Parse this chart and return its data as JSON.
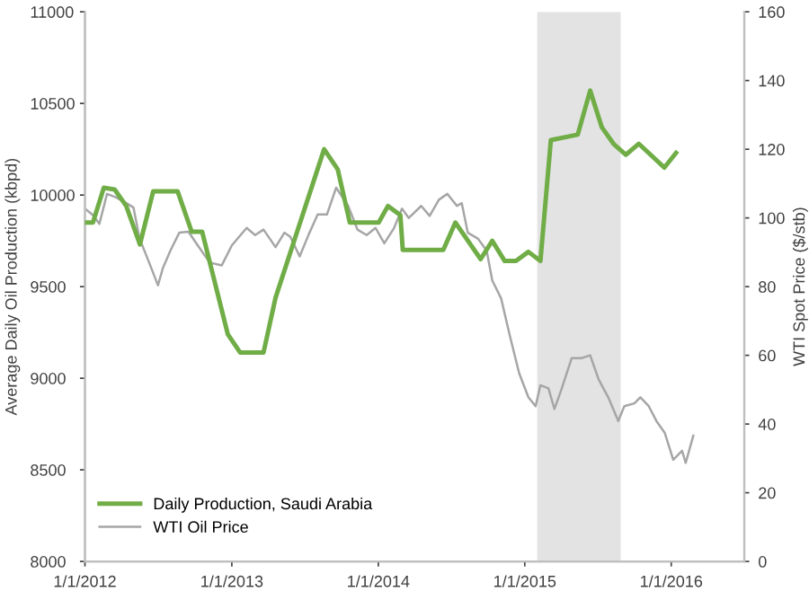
{
  "chart_data": {
    "type": "line",
    "ylabel": "Average Daily Oil Production (kbpd)",
    "y2label": "WTI Spot Price ($/stb)",
    "xlim": [
      "2012-01-01",
      "2016-07-01"
    ],
    "xticks": [
      {
        "value": "2012-01-01",
        "label": "1/1/2012"
      },
      {
        "value": "2013-01-01",
        "label": "1/1/2013"
      },
      {
        "value": "2014-01-01",
        "label": "1/1/2014"
      },
      {
        "value": "2015-01-01",
        "label": "1/1/2015"
      },
      {
        "value": "2016-01-01",
        "label": "1/1/2016"
      }
    ],
    "ylim": [
      8000,
      11000
    ],
    "yticks": [
      8000,
      8500,
      9000,
      9500,
      10000,
      10500,
      11000
    ],
    "y2lim": [
      0,
      160
    ],
    "y2ticks": [
      0,
      20,
      40,
      60,
      80,
      100,
      120,
      140,
      160
    ],
    "grid": false,
    "legend": "bottom left",
    "bands": [
      {
        "axis": "x",
        "from": "2015-02-01",
        "to": "2015-08-28",
        "color": "#e3e3e3"
      }
    ],
    "series": [
      {
        "name": "Daily Production, Saudi Arabia",
        "color": "#70ad47",
        "x": [
          "2012-01-04",
          "2012-01-21",
          "2012-02-17",
          "2012-03-15",
          "2012-04-13",
          "2012-05-17",
          "2012-06-19",
          "2012-08-19",
          "2012-09-23",
          "2012-10-19",
          "2012-12-22",
          "2013-01-22",
          "2013-03-21",
          "2013-04-20",
          "2013-08-19",
          "2013-09-22",
          "2013-10-22",
          "2014-01-02",
          "2014-01-25",
          "2014-02-25",
          "2014-03-03",
          "2014-06-12",
          "2014-07-12",
          "2014-09-13",
          "2014-10-12",
          "2014-11-12",
          "2014-12-10",
          "2015-01-10",
          "2015-02-09",
          "2015-03-07",
          "2015-05-13",
          "2015-06-13",
          "2015-07-12",
          "2015-08-10",
          "2015-09-10",
          "2015-10-12",
          "2015-12-15",
          "2016-01-13"
        ],
        "values": [
          9850,
          9850,
          10040,
          10030,
          9940,
          9730,
          10020,
          10020,
          9800,
          9800,
          9240,
          9140,
          9140,
          9440,
          10250,
          10140,
          9850,
          9850,
          9940,
          9890,
          9700,
          9700,
          9850,
          9650,
          9750,
          9640,
          9640,
          9690,
          9640,
          10300,
          10330,
          10570,
          10370,
          10280,
          10220,
          10280,
          10150,
          10230
        ]
      },
      {
        "name": "WTI Oil Price",
        "color": "#a6a6a6",
        "axis": "y2",
        "x": [
          "2012-01-01",
          "2012-01-19",
          "2012-02-06",
          "2012-02-25",
          "2012-03-18",
          "2012-04-18",
          "2012-05-01",
          "2012-05-16",
          "2012-06-09",
          "2012-07-01",
          "2012-07-13",
          "2012-08-01",
          "2012-08-23",
          "2012-09-15",
          "2012-10-07",
          "2012-11-07",
          "2012-12-07",
          "2013-01-01",
          "2013-02-07",
          "2013-02-28",
          "2013-03-21",
          "2013-04-20",
          "2013-05-12",
          "2013-05-27",
          "2013-06-19",
          "2013-07-12",
          "2013-08-03",
          "2013-08-26",
          "2013-09-18",
          "2013-10-18",
          "2013-11-10",
          "2013-12-03",
          "2013-12-25",
          "2014-01-16",
          "2014-02-09",
          "2014-03-01",
          "2014-03-18",
          "2014-04-18",
          "2014-05-09",
          "2014-06-01",
          "2014-06-22",
          "2014-07-16",
          "2014-07-28",
          "2014-08-12",
          "2014-09-06",
          "2014-09-28",
          "2014-10-12",
          "2014-11-03",
          "2014-11-24",
          "2014-12-18",
          "2015-01-10",
          "2015-01-28",
          "2015-02-09",
          "2015-03-01",
          "2015-03-16",
          "2015-04-01",
          "2015-04-28",
          "2015-05-22",
          "2015-06-13",
          "2015-07-04",
          "2015-07-28",
          "2015-08-22",
          "2015-09-06",
          "2015-10-01",
          "2015-10-16",
          "2015-11-06",
          "2015-11-25",
          "2015-12-16",
          "2016-01-06",
          "2016-01-28",
          "2016-02-06",
          "2016-02-25"
        ],
        "values": [
          102.7,
          101,
          98.3,
          107,
          106,
          104,
          103,
          94,
          87,
          80.4,
          85.3,
          90.5,
          95.7,
          96,
          92.2,
          87,
          86.2,
          92,
          97.1,
          95,
          96.6,
          91.5,
          95.7,
          94.5,
          88.8,
          95.3,
          101,
          101,
          108.8,
          103.5,
          96.6,
          95,
          97.1,
          92.6,
          97,
          102.7,
          100,
          103.5,
          100.6,
          105.3,
          107,
          103.5,
          104.3,
          95.7,
          94,
          90.5,
          81.8,
          76.6,
          66.1,
          54.8,
          47.8,
          45.2,
          51.3,
          50.4,
          44.4,
          49.6,
          59.2,
          59.2,
          60,
          53,
          47.8,
          40.9,
          45.2,
          46,
          47.8,
          45.2,
          40.9,
          37.4,
          29.6,
          32.2,
          28.7,
          36.6
        ]
      }
    ]
  }
}
